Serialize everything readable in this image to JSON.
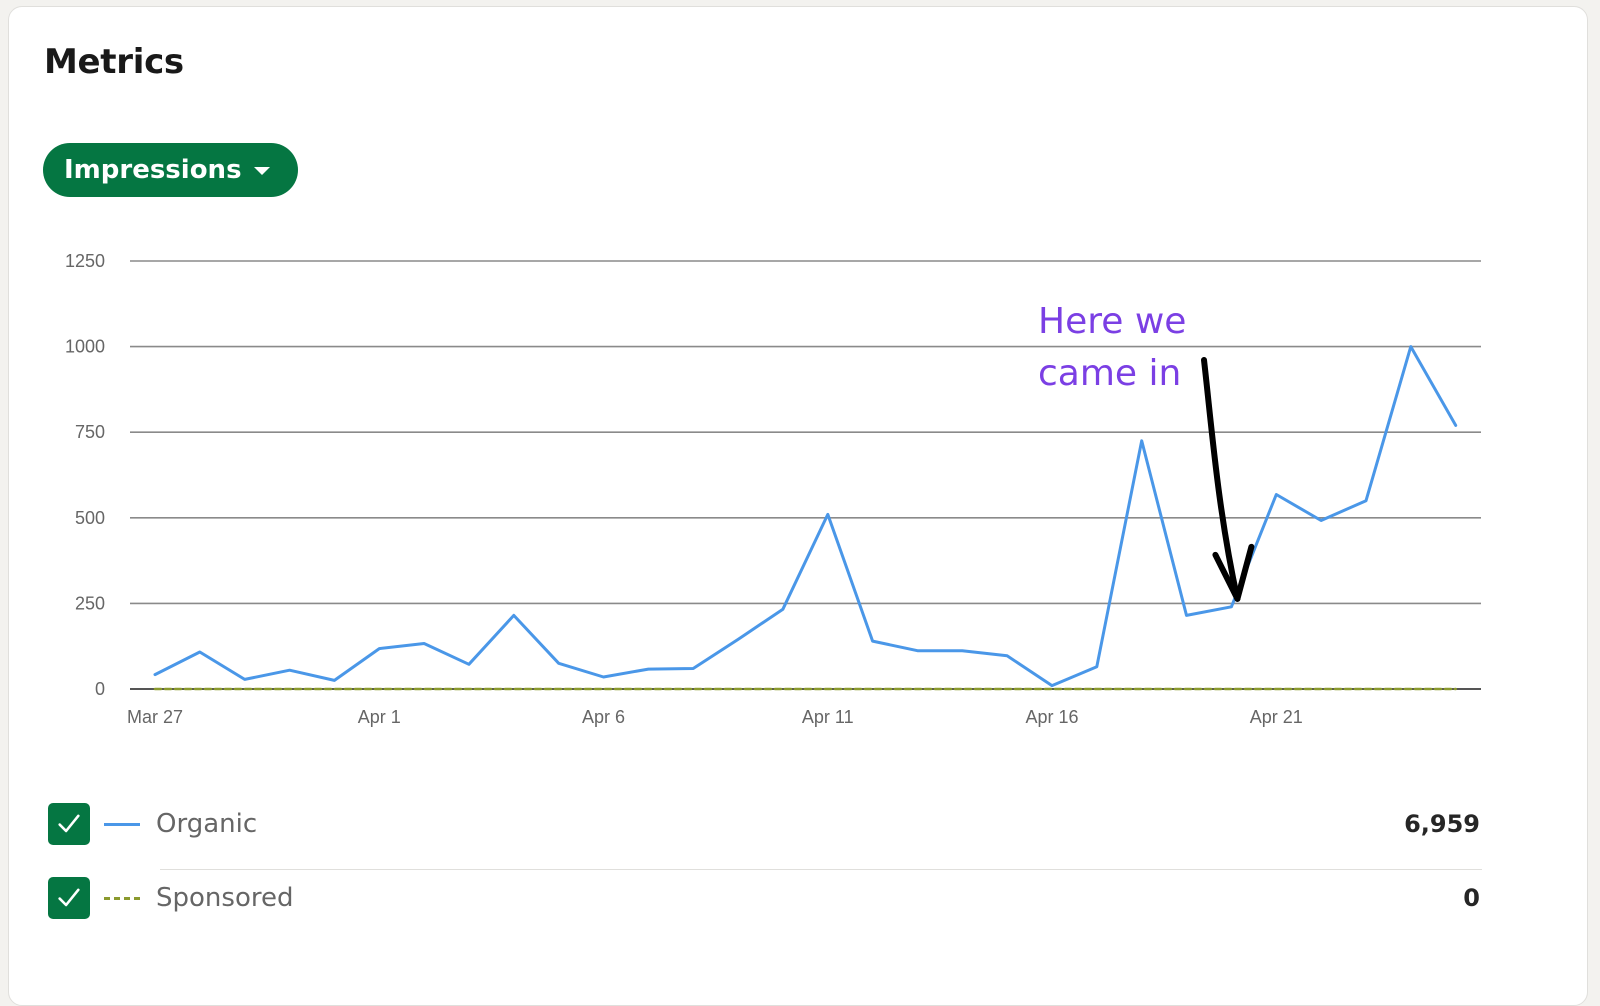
{
  "title": "Metrics",
  "metric_selector": {
    "label": "Impressions",
    "color": "#057642"
  },
  "annotation": {
    "text": "Here we\ncame in",
    "color": "#7b3fe4",
    "arrow_color": "#000000"
  },
  "legend": [
    {
      "label": "Organic",
      "value": "6,959",
      "checked": true,
      "color": "#4a97e8",
      "style": "solid"
    },
    {
      "label": "Sponsored",
      "value": "0",
      "checked": true,
      "color": "#8b9a2e",
      "style": "dashed"
    }
  ],
  "checkbox_color": "#057642",
  "icons": {
    "checkbox": "checkmark-icon",
    "dropdown": "caret-down-icon"
  },
  "chart_data": {
    "type": "line",
    "x": [
      "Mar 27",
      "Mar 28",
      "Mar 29",
      "Mar 30",
      "Mar 31",
      "Apr 1",
      "Apr 2",
      "Apr 3",
      "Apr 4",
      "Apr 5",
      "Apr 6",
      "Apr 7",
      "Apr 8",
      "Apr 9",
      "Apr 10",
      "Apr 11",
      "Apr 12",
      "Apr 13",
      "Apr 14",
      "Apr 15",
      "Apr 16",
      "Apr 17",
      "Apr 18",
      "Apr 19",
      "Apr 20",
      "Apr 21",
      "Apr 22",
      "Apr 23",
      "Apr 24",
      "Apr 25"
    ],
    "x_tick_labels": [
      "Mar 27",
      "Apr 1",
      "Apr 6",
      "Apr 11",
      "Apr 16",
      "Apr 21"
    ],
    "series": [
      {
        "name": "Organic",
        "color": "#4a97e8",
        "style": "solid",
        "values": [
          42,
          108,
          28,
          55,
          25,
          118,
          133,
          72,
          215,
          75,
          35,
          58,
          60,
          145,
          233,
          510,
          140,
          112,
          112,
          97,
          10,
          65,
          725,
          215,
          240,
          568,
          492,
          550,
          1000,
          770
        ]
      },
      {
        "name": "Sponsored",
        "color": "#8b9a2e",
        "style": "dashed",
        "values": [
          0,
          0,
          0,
          0,
          0,
          0,
          0,
          0,
          0,
          0,
          0,
          0,
          0,
          0,
          0,
          0,
          0,
          0,
          0,
          0,
          0,
          0,
          0,
          0,
          0,
          0,
          0,
          0,
          0,
          0
        ]
      }
    ],
    "yticks": [
      0,
      250,
      500,
      750,
      1000,
      1250
    ],
    "ylim": [
      0,
      1250
    ],
    "xlabel": "",
    "ylabel": "",
    "grid": true,
    "annotation": {
      "text": "Here we\ncame in",
      "points_to": "Apr 20"
    }
  }
}
